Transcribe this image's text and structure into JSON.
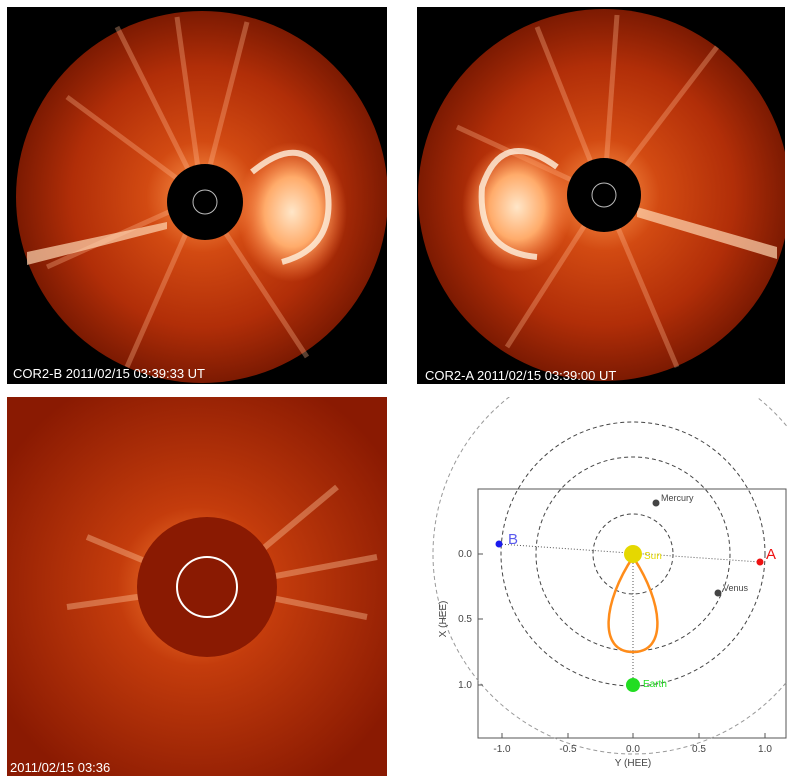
{
  "panels": {
    "cor2b": {
      "caption": "COR2-B 2011/02/15 03:39:33 UT"
    },
    "cor2a": {
      "caption": "COR2-A 2011/02/15 03:39:00 UT"
    },
    "lasco": {
      "caption": "2011/02/15 03:36"
    }
  },
  "orbit_plot": {
    "xlabel": "Y (HEE)",
    "ylabel": "X (HEE)",
    "x_ticks": [
      "-1.0",
      "-0.5",
      "0.0",
      "0.5",
      "1.0"
    ],
    "y_ticks": [
      "0.0",
      "0.5",
      "1.0"
    ],
    "bodies": {
      "sun": "Sun",
      "mercury": "Mercury",
      "venus": "Venus",
      "earth": "Earth",
      "stereo_a": "A",
      "stereo_b": "B"
    },
    "colors": {
      "sun": "#e5d800",
      "earth": "#22dd22",
      "stereo_a": "#ee1111",
      "stereo_b": "#1a1aee",
      "cme_loop": "#ff8c1a",
      "planet": "#444444"
    }
  }
}
